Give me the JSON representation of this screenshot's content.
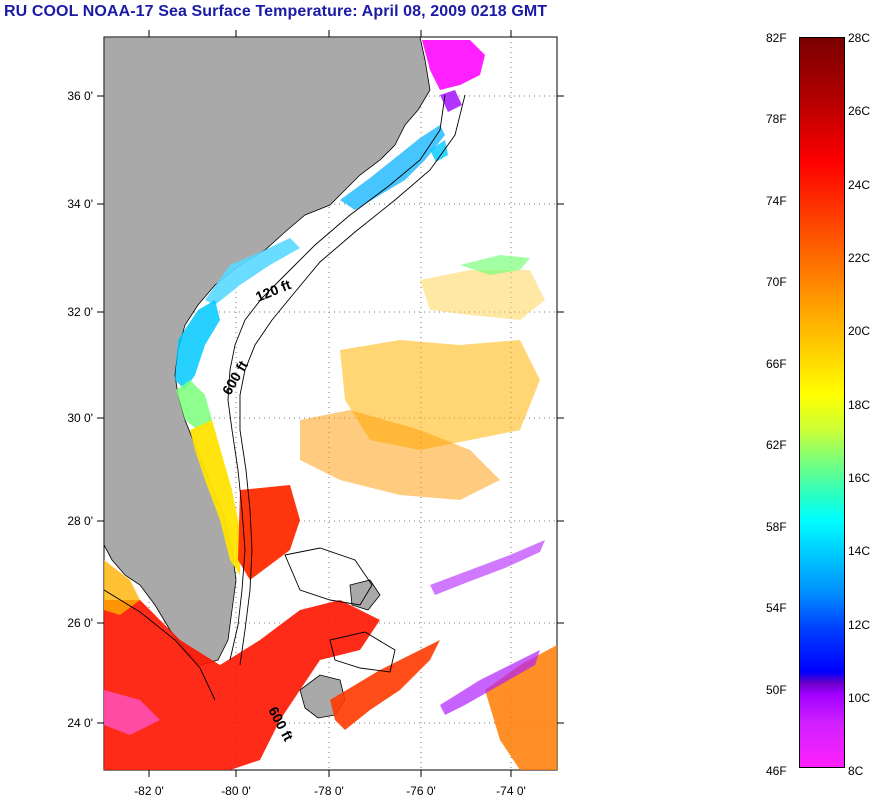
{
  "title": "RU COOL  NOAA-17  Sea Surface Temperature:  April 08, 2009 0218 GMT",
  "map": {
    "lat_labels": [
      "36 0'",
      "34 0'",
      "32 0'",
      "30 0'",
      "28 0'",
      "26 0'",
      "24 0'"
    ],
    "lon_labels": [
      "-82 0'",
      "-80 0'",
      "-78 0'",
      "-76 0'",
      "-74 0'"
    ],
    "contour_labels": [
      "120 ft",
      "600 ft",
      "600 ft"
    ]
  },
  "colorbar": {
    "fahrenheit_labels": [
      "82F",
      "78F",
      "74F",
      "70F",
      "66F",
      "62F",
      "58F",
      "54F",
      "50F",
      "46F"
    ],
    "celsius_labels": [
      "28C",
      "26C",
      "24C",
      "22C",
      "20C",
      "18C",
      "16C",
      "14C",
      "12C",
      "10C",
      "8C"
    ]
  }
}
